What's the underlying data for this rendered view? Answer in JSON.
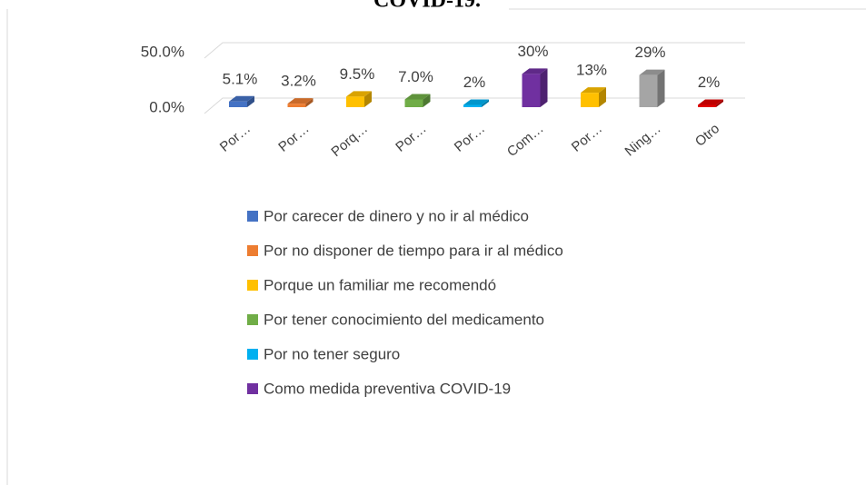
{
  "chart_data": {
    "type": "bar3d",
    "title": "COVID-19.",
    "categories": [
      "Por…",
      "Por…",
      "Porq…",
      "Por…",
      "Por…",
      "Com…",
      "Por…",
      "Ning…",
      "Otro"
    ],
    "values": [
      5.1,
      3.2,
      9.5,
      7.0,
      2,
      30,
      13,
      29,
      2
    ],
    "value_labels": [
      "5.1%",
      "3.2%",
      "9.5%",
      "7.0%",
      "2%",
      "30%",
      "13%",
      "29%",
      "2%"
    ],
    "colors": [
      "#4472c4",
      "#ed7d31",
      "#ffc000",
      "#70ad47",
      "#00b0f0",
      "#7030a0",
      "#ffc000",
      "#a5a5a5",
      "#e00000"
    ],
    "legend": [
      "Por carecer de dinero y no ir al médico",
      "Por no disponer de tiempo para ir al médico",
      "Porque un familiar me recomendó",
      "Por tener conocimiento del medicamento",
      "Por no tener seguro",
      "Como medida preventiva COVID-19"
    ],
    "ylim": [
      0,
      50
    ],
    "yticks": [
      {
        "value": 0,
        "label": "0.0%"
      },
      {
        "value": 50,
        "label": "50.0%"
      }
    ],
    "grid": true
  }
}
